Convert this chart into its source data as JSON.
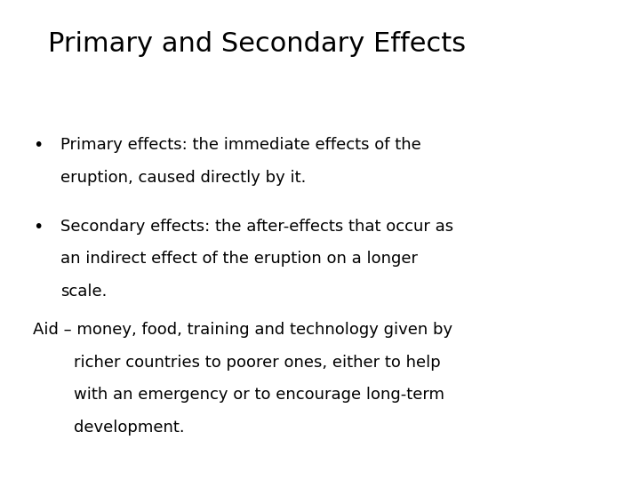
{
  "title": "Primary and Secondary Effects",
  "background_color": "#ffffff",
  "text_color": "#000000",
  "title_fontsize": 22,
  "body_fontsize": 13,
  "font_family": "DejaVu Sans",
  "bullet1_line1": "Primary effects: the immediate effects of the",
  "bullet1_line2": "eruption, caused directly by it.",
  "bullet2_line1": "Secondary effects: the after-effects that occur as",
  "bullet2_line2": "an indirect effect of the eruption on a longer",
  "bullet2_line3": "scale.",
  "aid_line1": "Aid – money, food, training and technology given by",
  "aid_line2": "richer countries to poorer ones, either to help",
  "aid_line3": "with an emergency or to encourage long-term",
  "aid_line4": "development."
}
